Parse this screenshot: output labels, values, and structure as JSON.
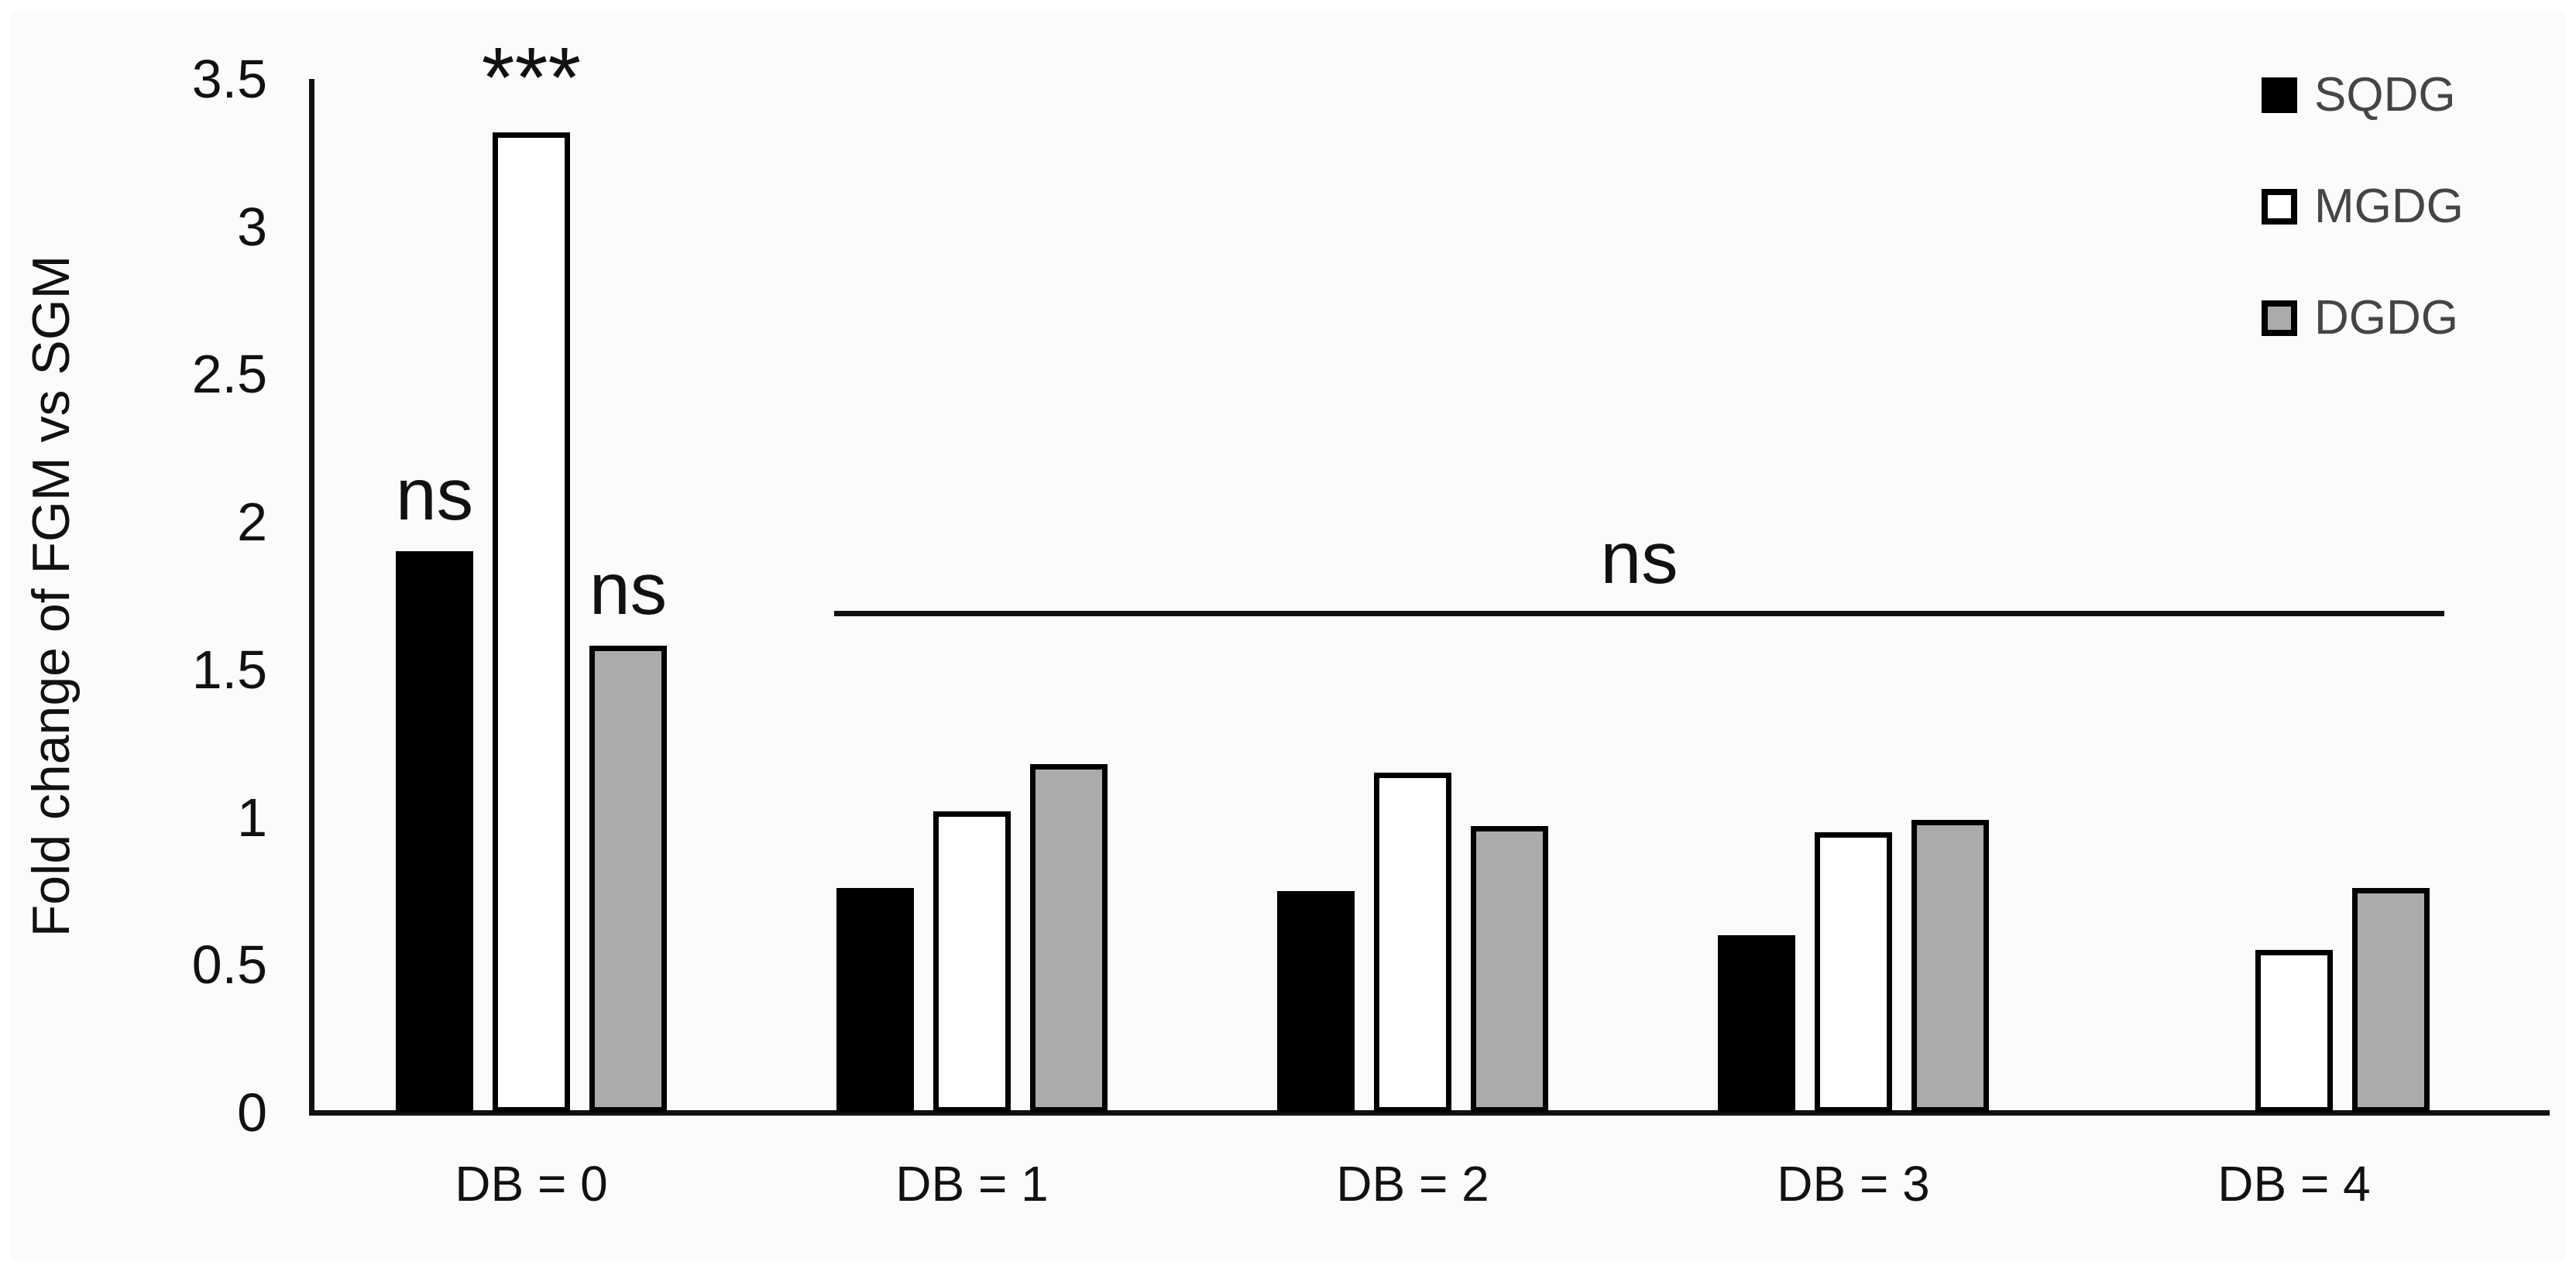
{
  "figure": {
    "background": "#ffffff",
    "panel_background": "#fbfbfb",
    "axis_color": "#111111"
  },
  "chart_data": {
    "type": "bar",
    "title": "",
    "xlabel": "",
    "ylabel": "Fold change of FGM vs SGM",
    "ylim": [
      0,
      3.5
    ],
    "ytick_step": 0.5,
    "yticks": [
      "0",
      "0.5",
      "1",
      "1.5",
      "2",
      "2.5",
      "3",
      "3.5"
    ],
    "grid": false,
    "legend_position": "top-right",
    "categories": [
      "DB = 0",
      "DB = 1",
      "DB = 2",
      "DB = 3",
      "DB = 4"
    ],
    "series": [
      {
        "name": "SQDG",
        "color": "#000000",
        "border": "#000000",
        "values": [
          1.9,
          0.76,
          0.75,
          0.6,
          0
        ]
      },
      {
        "name": "MGDG",
        "color": "#ffffff",
        "border": "#000000",
        "values": [
          3.32,
          1.02,
          1.15,
          0.95,
          0.55
        ]
      },
      {
        "name": "DGDG",
        "color": "#ababab",
        "border": "#000000",
        "values": [
          1.58,
          1.18,
          0.97,
          0.99,
          0.76
        ]
      }
    ],
    "annotations": {
      "sig_labels": [
        {
          "text": "ns",
          "category_index": 0,
          "series_index": 0
        },
        {
          "text": "***",
          "category_index": 0,
          "series_index": 1
        },
        {
          "text": "ns",
          "category_index": 0,
          "series_index": 2
        }
      ],
      "span_line": {
        "label": "ns",
        "y_value": 1.69,
        "from_category_index": 1,
        "to_category_index": 4
      }
    }
  }
}
